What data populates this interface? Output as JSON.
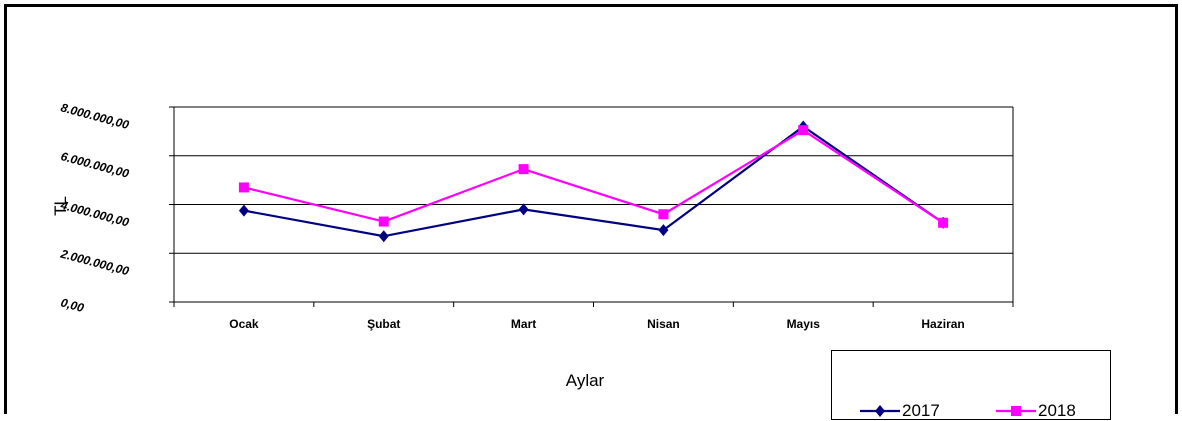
{
  "chart_data": {
    "type": "line",
    "title": "",
    "xlabel": "Aylar",
    "ylabel": "TL",
    "categories": [
      "Ocak",
      "Şubat",
      "Mart",
      "Nisan",
      "Mayıs",
      "Haziran"
    ],
    "ylim": [
      0,
      8000000
    ],
    "y_ticks": [
      "0,00",
      "2.000.000,00",
      "4.000.000,00",
      "6.000.000,00",
      "8.000.000,00"
    ],
    "y_tick_values": [
      0,
      2000000,
      4000000,
      6000000,
      8000000
    ],
    "grid": true,
    "legend_position": "bottom-right",
    "series": [
      {
        "name": "2017",
        "color": "#000080",
        "marker": "diamond",
        "values": [
          3750000,
          2700000,
          3800000,
          2950000,
          7200000,
          3250000
        ]
      },
      {
        "name": "2018",
        "color": "#FF00FF",
        "marker": "square",
        "values": [
          4700000,
          3300000,
          5450000,
          3600000,
          7050000,
          3250000
        ]
      }
    ]
  }
}
